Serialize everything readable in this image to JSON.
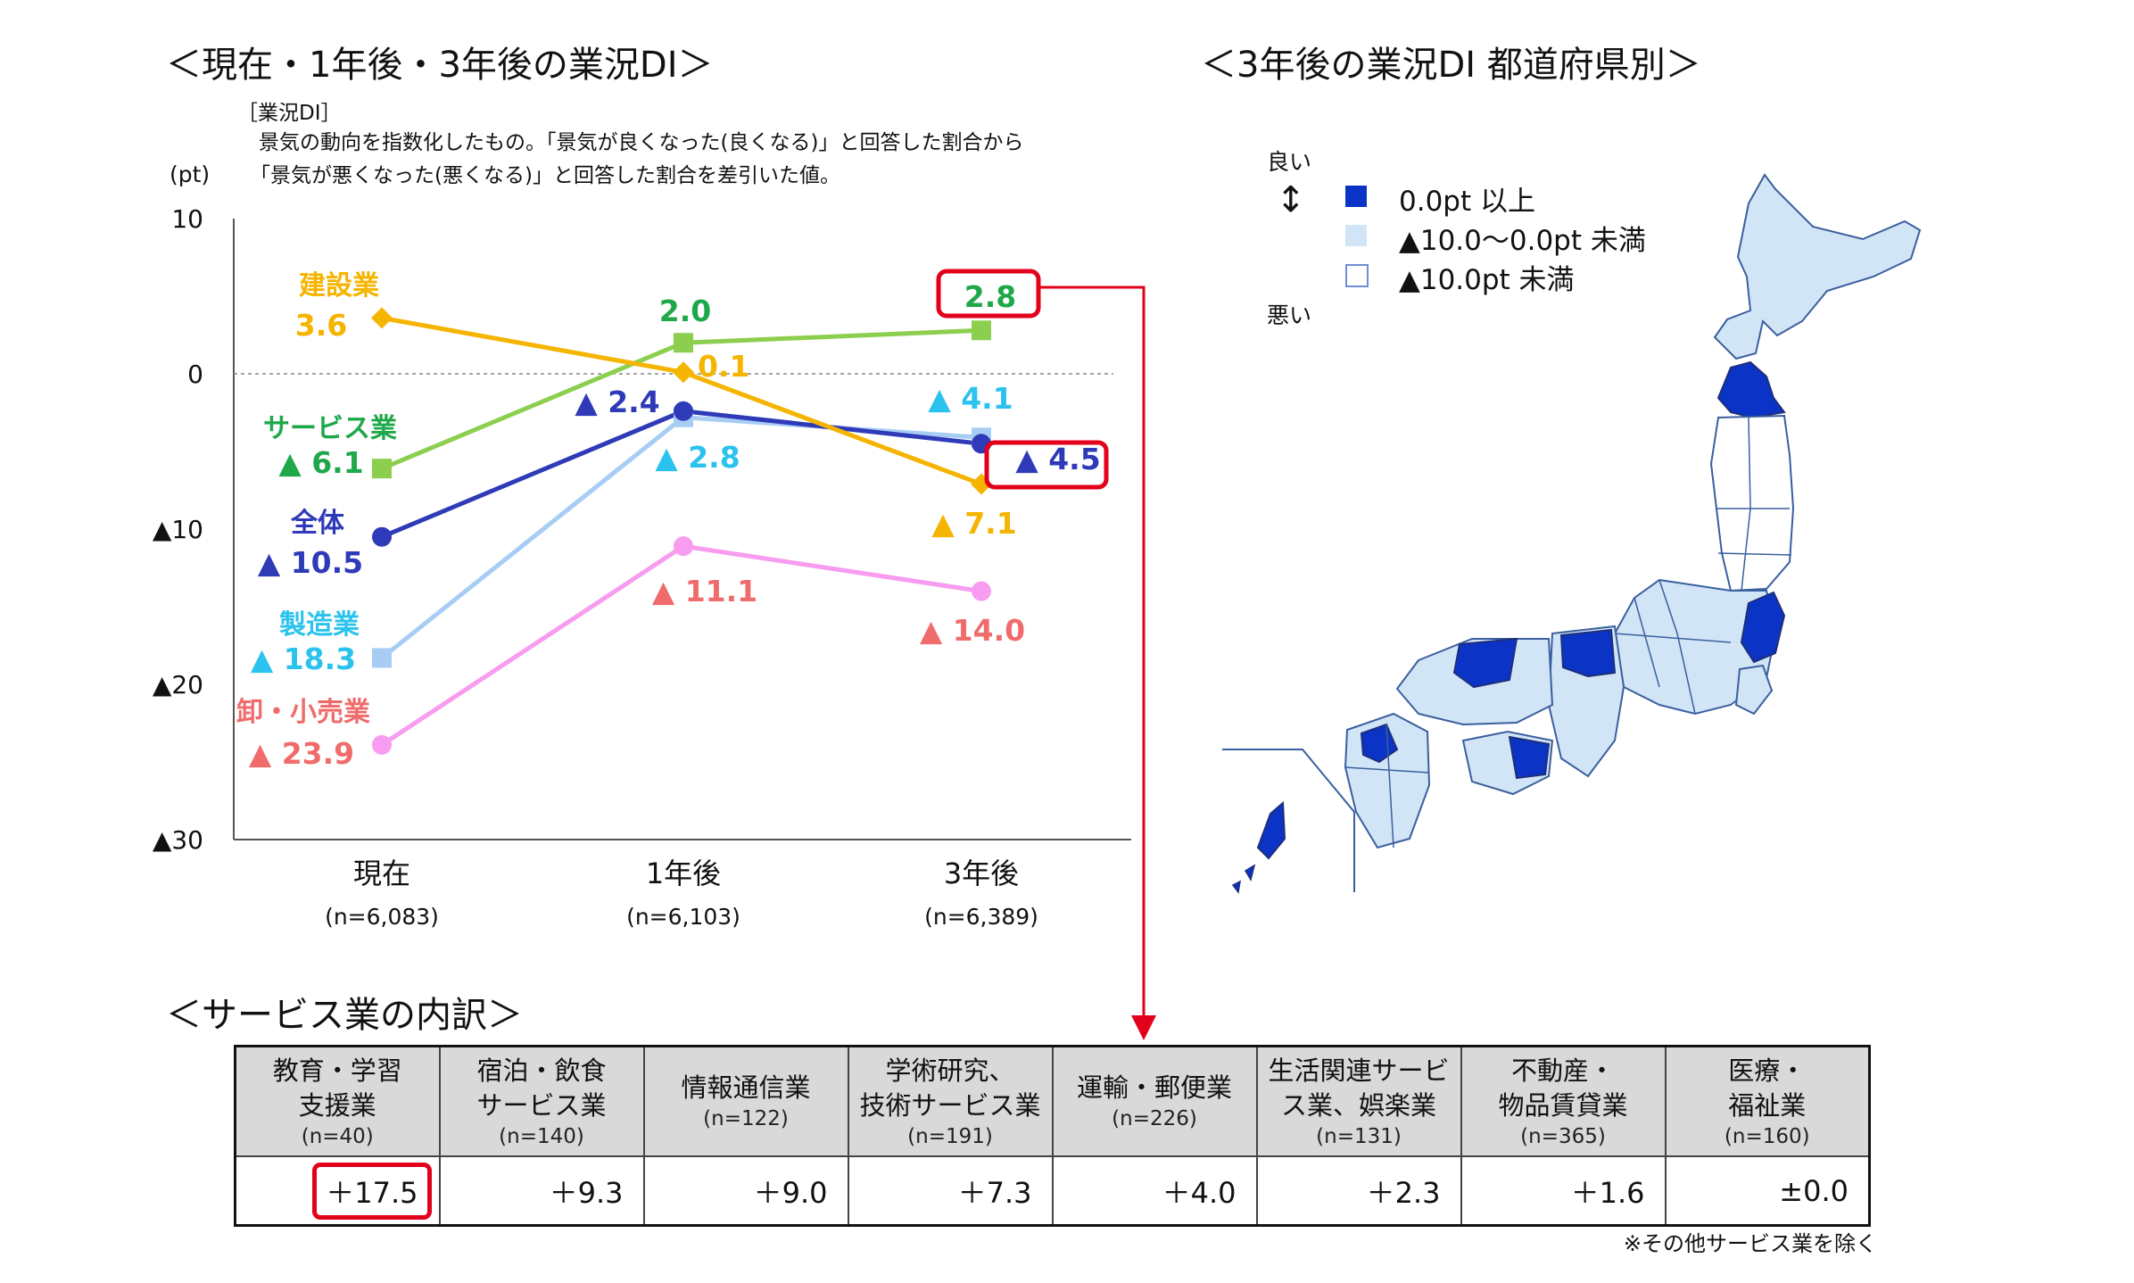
{
  "left_title": "＜現在・1年後・3年後の業況DI＞",
  "right_title": "＜3年後の業況DI 都道府県別＞",
  "breakdown_title": "＜サービス業の内訳＞",
  "definition": {
    "label": "［業況DI］",
    "line1": "景気の動向を指数化したもの。「景気が良くなった(良くなる)」と回答した割合から",
    "line2": "「景気が悪くなった(悪くなる)」と回答した割合を差引いた値。"
  },
  "colors": {
    "construction": "#f5b400",
    "service": "#8ccf4f",
    "service_label": "#1fa84a",
    "total": "#2e3ab8",
    "manufacturing": "#a8cdf5",
    "manufacturing_label": "#2bc3ee",
    "retail": "#f79cf0",
    "retail_label": "#f06c6c",
    "highlight": "#e3001b",
    "map_dark": "#0b33c5",
    "map_light": "#d2e5f7"
  },
  "chart_data": {
    "type": "line",
    "title": "＜現在・1年後・3年後の業況DI＞",
    "ylabel": "(pt)",
    "ylim": [
      -30,
      10
    ],
    "yticks": [
      {
        "value": 10,
        "label": "10"
      },
      {
        "value": 0,
        "label": "0"
      },
      {
        "value": -10,
        "label": "▲10"
      },
      {
        "value": -20,
        "label": "▲20"
      },
      {
        "value": -30,
        "label": "▲30"
      }
    ],
    "categories": [
      "現在",
      "1年後",
      "3年後"
    ],
    "category_samples": [
      "(n=6,083)",
      "(n=6,103)",
      "(n=6,389)"
    ],
    "zero_line": "dashed",
    "series": [
      {
        "name": "建設業",
        "key": "construction",
        "marker": "diamond",
        "values": [
          3.6,
          0.1,
          -7.1
        ],
        "labels": [
          "3.6",
          "0.1",
          "▲ 7.1"
        ]
      },
      {
        "name": "サービス業",
        "key": "service",
        "marker": "square",
        "values": [
          -6.1,
          2.0,
          2.8
        ],
        "labels": [
          "▲ 6.1",
          "2.0",
          "2.8"
        ]
      },
      {
        "name": "全体",
        "key": "total",
        "marker": "circle",
        "values": [
          -10.5,
          -2.4,
          -4.5
        ],
        "labels": [
          "▲ 10.5",
          "▲ 2.4",
          "▲ 4.5"
        ]
      },
      {
        "name": "製造業",
        "key": "manufacturing",
        "marker": "square",
        "values": [
          -18.3,
          -2.8,
          -4.1
        ],
        "labels": [
          "▲ 18.3",
          "▲ 2.8",
          "▲ 4.1"
        ]
      },
      {
        "name": "卸・小売業",
        "key": "retail",
        "marker": "circle",
        "values": [
          -23.9,
          -11.1,
          -14.0
        ],
        "labels": [
          "▲ 23.9",
          "▲ 11.1",
          "▲ 14.0"
        ]
      }
    ]
  },
  "map_legend": {
    "good": "良い",
    "bad": "悪い",
    "items": [
      {
        "label": "0.0pt 以上",
        "style": "dark"
      },
      {
        "label": "▲10.0～0.0pt 未満",
        "style": "light"
      },
      {
        "label": "▲10.0pt 未満",
        "style": "outline"
      }
    ]
  },
  "breakdown": {
    "columns": [
      {
        "name": "教育・学習\n支援業",
        "n": "(n=40)",
        "value": "＋17.5",
        "highlight": true
      },
      {
        "name": "宿泊・飲食\nサービス業",
        "n": "(n=140)",
        "value": "＋9.3"
      },
      {
        "name": "情報通信業",
        "n": "(n=122)",
        "value": "＋9.0"
      },
      {
        "name": "学術研究、\n技術サービス業",
        "n": "(n=191)",
        "value": "＋7.3"
      },
      {
        "name": "運輸・郵便業",
        "n": "(n=226)",
        "value": "＋4.0"
      },
      {
        "name": "生活関連サービ\nス業、娯楽業",
        "n": "(n=131)",
        "value": "＋2.3"
      },
      {
        "name": "不動産・\n物品賃貸業",
        "n": "(n=365)",
        "value": "＋1.6"
      },
      {
        "name": "医療・\n福祉業",
        "n": "(n=160)",
        "value": "±0.0"
      }
    ],
    "footnote": "※その他サービス業を除く"
  }
}
